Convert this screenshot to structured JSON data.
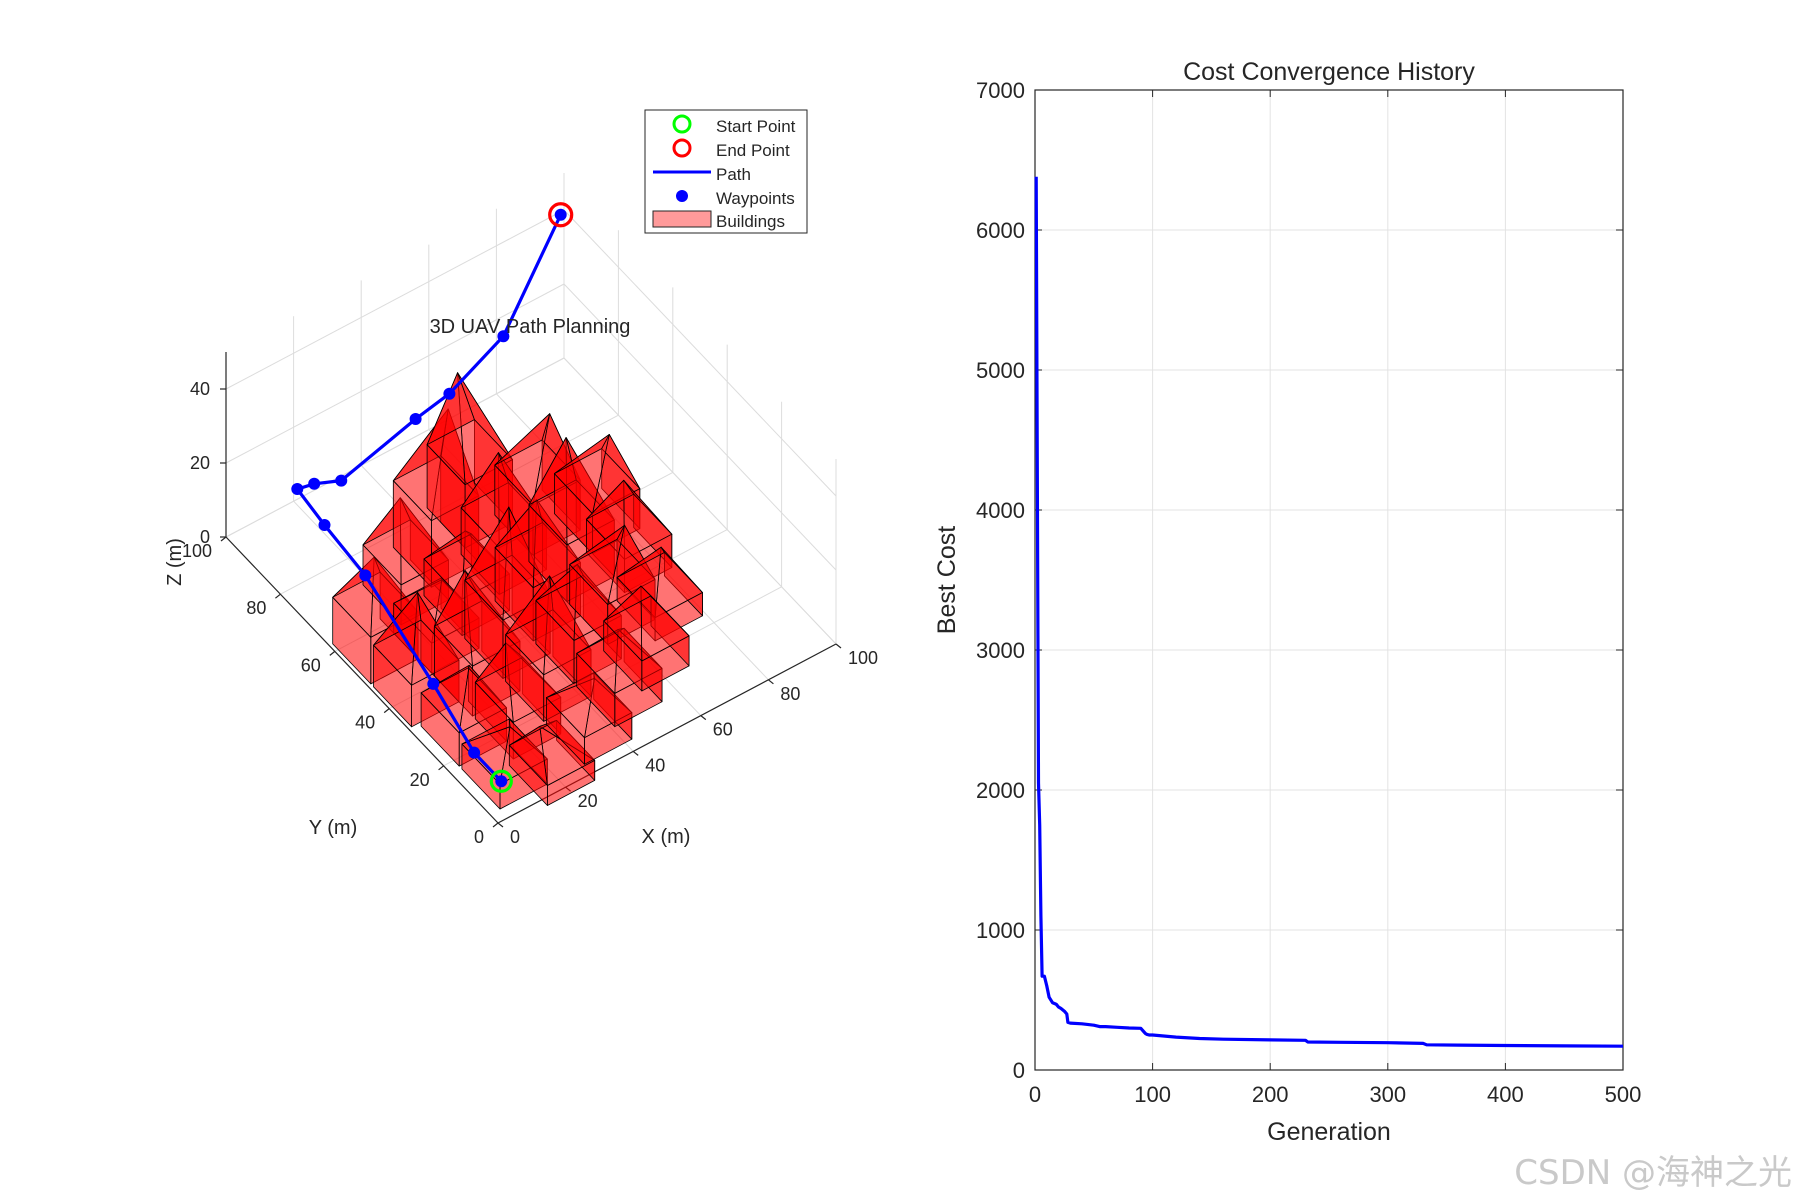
{
  "chart_data": [
    {
      "type": "scatter",
      "projection": "3d",
      "title": "3D UAV Path Planning",
      "xlabel": "X (m)",
      "ylabel": "Y (m)",
      "zlabel": "Z (m)",
      "xlim": [
        0,
        100
      ],
      "ylim": [
        0,
        100
      ],
      "zlim": [
        0,
        50
      ],
      "x_ticks": [
        "0",
        "20",
        "40",
        "60",
        "80",
        "100"
      ],
      "y_ticks": [
        "0",
        "20",
        "40",
        "60",
        "80",
        "100"
      ],
      "z_ticks": [
        "0",
        "20",
        "40"
      ],
      "grid": true,
      "legend_position": "top-right",
      "legend": [
        {
          "label": "Start Point",
          "color": "#00ff00",
          "marker": "circle"
        },
        {
          "label": "End Point",
          "color": "#ff0000",
          "marker": "circle"
        },
        {
          "label": "Path",
          "color": "#0000ff",
          "marker": "line"
        },
        {
          "label": "Waypoints",
          "color": "#0000ff",
          "marker": "dot"
        },
        {
          "label": "Buildings",
          "color": "#ff9a9a",
          "marker": "patch"
        }
      ],
      "start_point": {
        "x": 5,
        "y": 5,
        "z": 5
      },
      "end_point": {
        "x": 95,
        "y": 95,
        "z": 45
      },
      "waypoints": [
        {
          "x": 5,
          "y": 5,
          "z": 5
        },
        {
          "x": 5,
          "y": 15,
          "z": 5
        },
        {
          "x": 5,
          "y": 30,
          "z": 12
        },
        {
          "x": 5,
          "y": 55,
          "z": 22
        },
        {
          "x": 5,
          "y": 70,
          "z": 24
        },
        {
          "x": 5,
          "y": 80,
          "z": 26
        },
        {
          "x": 10,
          "y": 80,
          "z": 25
        },
        {
          "x": 18,
          "y": 80,
          "z": 22
        },
        {
          "x": 40,
          "y": 80,
          "z": 28
        },
        {
          "x": 50,
          "y": 80,
          "z": 30
        },
        {
          "x": 70,
          "y": 85,
          "z": 32
        },
        {
          "x": 95,
          "y": 95,
          "z": 45
        }
      ],
      "buildings": [
        {
          "x": 8,
          "y": 55,
          "h": 28
        },
        {
          "x": 8,
          "y": 40,
          "h": 25
        },
        {
          "x": 10,
          "y": 25,
          "h": 20
        },
        {
          "x": 10,
          "y": 10,
          "h": 15
        },
        {
          "x": 20,
          "y": 5,
          "h": 12
        },
        {
          "x": 22,
          "y": 20,
          "h": 22
        },
        {
          "x": 22,
          "y": 35,
          "h": 30
        },
        {
          "x": 22,
          "y": 50,
          "h": 18
        },
        {
          "x": 25,
          "y": 65,
          "h": 24
        },
        {
          "x": 35,
          "y": 10,
          "h": 16
        },
        {
          "x": 35,
          "y": 25,
          "h": 28
        },
        {
          "x": 35,
          "y": 40,
          "h": 35
        },
        {
          "x": 35,
          "y": 55,
          "h": 22
        },
        {
          "x": 38,
          "y": 70,
          "h": 40
        },
        {
          "x": 48,
          "y": 15,
          "h": 20
        },
        {
          "x": 48,
          "y": 30,
          "h": 26
        },
        {
          "x": 48,
          "y": 45,
          "h": 32
        },
        {
          "x": 50,
          "y": 60,
          "h": 28
        },
        {
          "x": 52,
          "y": 75,
          "h": 38
        },
        {
          "x": 60,
          "y": 20,
          "h": 18
        },
        {
          "x": 62,
          "y": 35,
          "h": 24
        },
        {
          "x": 62,
          "y": 50,
          "h": 34
        },
        {
          "x": 64,
          "y": 65,
          "h": 30
        },
        {
          "x": 72,
          "y": 30,
          "h": 14
        },
        {
          "x": 75,
          "y": 45,
          "h": 20
        },
        {
          "x": 76,
          "y": 58,
          "h": 24
        }
      ]
    },
    {
      "type": "line",
      "title": "Cost Convergence History",
      "xlabel": "Generation",
      "ylabel": "Best Cost",
      "xlim": [
        0,
        500
      ],
      "ylim": [
        0,
        7000
      ],
      "x_ticks": [
        "0",
        "100",
        "200",
        "300",
        "400",
        "500"
      ],
      "y_ticks": [
        "0",
        "1000",
        "2000",
        "3000",
        "4000",
        "5000",
        "6000",
        "7000"
      ],
      "grid": true,
      "line_color": "#0000ff",
      "x": [
        1,
        2,
        3,
        4,
        5,
        6,
        8,
        10,
        12,
        15,
        18,
        20,
        22,
        25,
        27,
        28,
        30,
        40,
        50,
        55,
        60,
        70,
        80,
        90,
        94,
        95,
        97,
        100,
        120,
        140,
        160,
        200,
        230,
        232,
        260,
        300,
        330,
        333,
        360,
        400,
        450,
        500
      ],
      "y": [
        6380,
        4100,
        2050,
        1750,
        1100,
        670,
        670,
        600,
        520,
        480,
        470,
        450,
        440,
        420,
        400,
        340,
        335,
        330,
        320,
        310,
        310,
        305,
        300,
        298,
        260,
        255,
        250,
        250,
        235,
        225,
        220,
        215,
        212,
        200,
        198,
        195,
        190,
        180,
        178,
        175,
        172,
        170
      ]
    }
  ],
  "watermark": "CSDN @海神之光"
}
